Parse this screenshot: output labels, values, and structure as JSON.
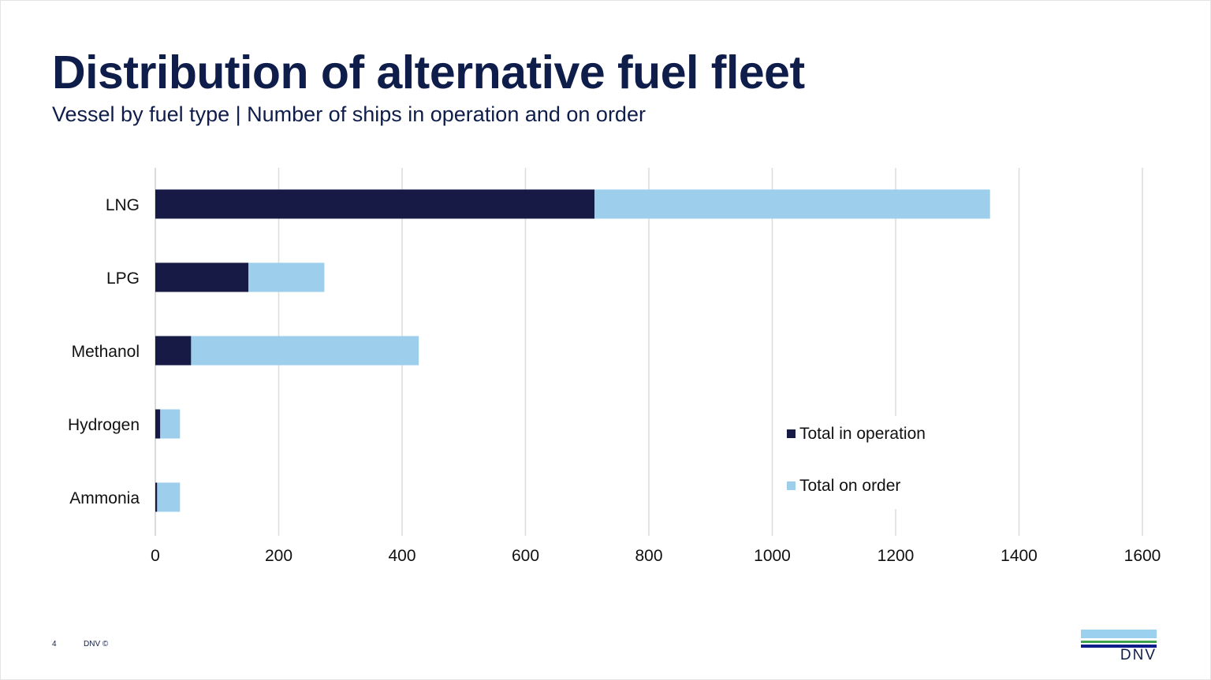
{
  "title": "Distribution of alternative fuel fleet",
  "subtitle": "Vessel by fuel type | Number of ships in operation and on order",
  "footer": {
    "page": "4",
    "copyright": "DNV ©"
  },
  "logo": {
    "text": "DNV"
  },
  "chart_data": {
    "type": "bar",
    "orientation": "horizontal",
    "stacked": true,
    "categories": [
      "LNG",
      "LPG",
      "Methanol",
      "Hydrogen",
      "Ammonia"
    ],
    "series": [
      {
        "name": "Total in operation",
        "color": "#161a45",
        "values": [
          712,
          151,
          58,
          8,
          3
        ]
      },
      {
        "name": "Total on order",
        "color": "#9dcfed",
        "values": [
          641,
          123,
          369,
          32,
          37
        ]
      }
    ],
    "xlim": [
      0,
      1600
    ],
    "xticks": [
      "0",
      "200",
      "400",
      "600",
      "800",
      "1000",
      "1200",
      "1400",
      "1600"
    ],
    "grid": true,
    "legend": "bottom-right"
  }
}
